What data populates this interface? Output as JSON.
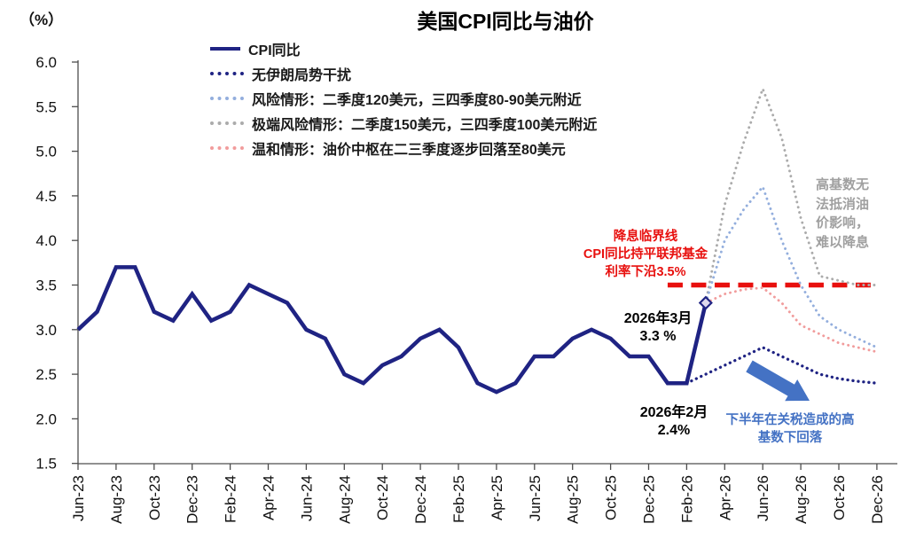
{
  "chart": {
    "title": "美国CPI同比与油价",
    "unit_label": "（%）"
  },
  "chart_data": {
    "type": "line",
    "title": "美国CPI同比与油价",
    "ylabel": "（%）",
    "ylim": [
      1.5,
      6.0
    ],
    "y_tick_step": 0.5,
    "x_tick_labels": [
      "Jun-23",
      "Aug-23",
      "Oct-23",
      "Dec-23",
      "Feb-24",
      "Apr-24",
      "Jun-24",
      "Aug-24",
      "Oct-24",
      "Dec-24",
      "Feb-25",
      "Apr-25",
      "Jun-25",
      "Aug-25",
      "Oct-25",
      "Dec-25",
      "Feb-26",
      "Apr-26",
      "Jun-26",
      "Aug-26",
      "Oct-26",
      "Dec-26"
    ],
    "months_full": [
      "Jun-23",
      "Jul-23",
      "Aug-23",
      "Sep-23",
      "Oct-23",
      "Nov-23",
      "Dec-23",
      "Jan-24",
      "Feb-24",
      "Mar-24",
      "Apr-24",
      "May-24",
      "Jun-24",
      "Jul-24",
      "Aug-24",
      "Sep-24",
      "Oct-24",
      "Nov-24",
      "Dec-24",
      "Jan-25",
      "Feb-25",
      "Mar-25",
      "Apr-25",
      "May-25",
      "Jun-25",
      "Jul-25",
      "Aug-25",
      "Sep-25",
      "Oct-25",
      "Nov-25",
      "Dec-25",
      "Jan-26",
      "Feb-26",
      "Mar-26",
      "Apr-26",
      "May-26",
      "Jun-26",
      "Jul-26",
      "Aug-26",
      "Sep-26",
      "Oct-26",
      "Nov-26",
      "Dec-26"
    ],
    "grid": false,
    "legend_position": "top-left",
    "series": [
      {
        "name": "CPI同比",
        "style": "solid",
        "color": "#1f2383",
        "start_index": 0,
        "values": [
          3.0,
          3.2,
          3.7,
          3.7,
          3.2,
          3.1,
          3.4,
          3.1,
          3.2,
          3.5,
          3.4,
          3.3,
          3.0,
          2.9,
          2.5,
          2.4,
          2.6,
          2.7,
          2.9,
          3.0,
          2.8,
          2.4,
          2.3,
          2.4,
          2.7,
          2.7,
          2.9,
          3.0,
          2.9,
          2.7,
          2.7,
          2.4,
          2.4,
          3.3
        ]
      },
      {
        "name": "无伊朗局势干扰",
        "style": "dotted",
        "color": "#1f2383",
        "start_index": 32,
        "values": [
          2.4,
          2.5,
          2.6,
          2.7,
          2.8,
          2.7,
          2.6,
          2.5,
          2.45,
          2.42,
          2.4
        ]
      },
      {
        "name": "风险情形：二季度120美元，三四季度80-90美元附近",
        "style": "dotted",
        "color": "#93aedd",
        "start_index": 33,
        "values": [
          3.3,
          4.0,
          4.35,
          4.6,
          4.0,
          3.5,
          3.15,
          3.0,
          2.9,
          2.8
        ]
      },
      {
        "name": "极端风险情形：二季度150美元，三四季度100美元附近",
        "style": "dotted",
        "color": "#ababab",
        "start_index": 33,
        "values": [
          3.3,
          4.4,
          5.1,
          5.7,
          5.15,
          4.25,
          3.6,
          3.55,
          3.5,
          3.5
        ]
      },
      {
        "name": "温和情形：油价中枢在二三季度逐步回落至80美元",
        "style": "dotted",
        "color": "#f19c9c",
        "start_index": 33,
        "values": [
          3.3,
          3.4,
          3.45,
          3.47,
          3.3,
          3.05,
          2.95,
          2.85,
          2.8,
          2.75
        ]
      }
    ],
    "threshold_line": {
      "value": 3.5,
      "color": "#e8100e",
      "style": "dashed",
      "start_month_index": 31,
      "end_month_index": 42
    },
    "marker": {
      "month_index": 33,
      "value": 3.3,
      "shape": "diamond",
      "fill": "#ded9ee",
      "stroke": "#1f2383"
    }
  },
  "annotations": {
    "threshold_note": "降息临界线\nCPI同比持平联邦基金\n利率下沿3.5%",
    "mar_2026": {
      "line1": "2026年3月",
      "line2": "3.3 %"
    },
    "feb_2026": {
      "line1": "2026年2月",
      "line2": "2.4%"
    },
    "high_base_note": "高基数无\n法抵消油\n价影响，\n难以降息",
    "tariff_note": "下半年在关税造成的高\n基数下回落"
  },
  "colors": {
    "navy": "#1f2383",
    "light_blue": "#93aedd",
    "gray": "#ababab",
    "pink": "#f19c9c",
    "threshold_red": "#e8100e",
    "accent_blue": "#4472c4",
    "note_gray": "#a0a0a0"
  }
}
